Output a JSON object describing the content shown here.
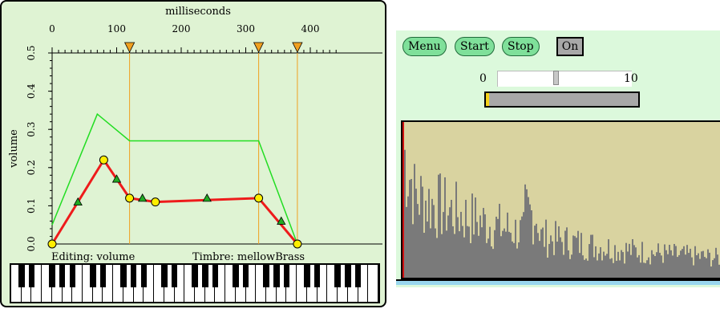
{
  "envelope_editor": {
    "x_axis_label": "milliseconds",
    "y_axis_label": "volume",
    "x_ticks": [
      "0",
      "100",
      "200",
      "300",
      "400"
    ],
    "y_ticks": [
      "0.0",
      "0.1",
      "0.2",
      "0.3",
      "0.4",
      "0.5"
    ],
    "editing_label": "Editing: volume",
    "timbre_label": "Timbre: mellowBrass",
    "colors": {
      "background": "#dff3d3",
      "envelope_line": "#ee1b1b",
      "limit_line": "#22dd22",
      "marker_line": "#f0a020",
      "point_fill": "#ffee00"
    },
    "marker_times_ms": [
      120,
      320,
      380
    ],
    "envelope_points_ms_volume": [
      [
        0,
        0.0
      ],
      [
        80,
        0.22
      ],
      [
        120,
        0.12
      ],
      [
        160,
        0.11
      ],
      [
        320,
        0.12
      ],
      [
        380,
        0.0
      ]
    ],
    "triangle_points_ms_volume": [
      [
        40,
        0.11
      ],
      [
        100,
        0.17
      ],
      [
        140,
        0.12
      ],
      [
        240,
        0.12
      ],
      [
        355,
        0.06
      ]
    ],
    "limit_points_ms_volume": [
      [
        0,
        0.05
      ],
      [
        70,
        0.34
      ],
      [
        120,
        0.27
      ],
      [
        320,
        0.27
      ],
      [
        380,
        0.0
      ]
    ],
    "x_range": [
      0,
      400
    ],
    "y_range": [
      0,
      0.5
    ]
  },
  "keyboard": {
    "white_keys": 36
  },
  "player": {
    "menu_label": "Menu",
    "start_label": "Start",
    "stop_label": "Stop",
    "on_label": "On",
    "slider_min_label": "0",
    "slider_max_label": "10",
    "slider_value": 4.5,
    "progress_fraction": 0.02,
    "colors": {
      "pill": "#7fe09a",
      "spectrum_bg": "#d9d3a0",
      "spectrum_bars": "#7a7a7a",
      "progress_fill": "#f4d21b"
    }
  }
}
